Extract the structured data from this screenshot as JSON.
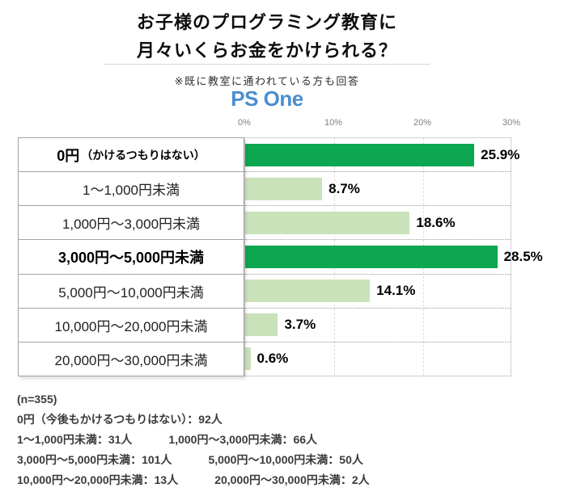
{
  "header": {
    "title_line1": "お子様のプログラミング教育に",
    "title_line2": "月々いくらお金をかけられる？",
    "note": "※既に教室に通われている方も回答",
    "logo_text": "PS One"
  },
  "chart_data": {
    "type": "bar",
    "orientation": "horizontal",
    "title": "お子様のプログラミング教育に月々いくらお金をかけられる？",
    "x_ticks": [
      "0%",
      "10%",
      "20%",
      "30%"
    ],
    "xlim": [
      0,
      30
    ],
    "grid": true,
    "legend": false,
    "categories": [
      {
        "label": "0円",
        "suffix": "（かけるつもりはない）"
      },
      {
        "label": "1～1,000円未満",
        "suffix": ""
      },
      {
        "label": "1,000円～3,000円未満",
        "suffix": ""
      },
      {
        "label": "3,000円～5,000円未満",
        "suffix": ""
      },
      {
        "label": "5,000円～10,000円未満",
        "suffix": ""
      },
      {
        "label": "10,000円～20,000円未満",
        "suffix": ""
      },
      {
        "label": "20,000円～30,000円未満",
        "suffix": ""
      }
    ],
    "values": [
      25.9,
      8.7,
      18.6,
      28.5,
      14.1,
      3.7,
      0.6
    ],
    "value_labels": [
      "25.9%",
      "8.7%",
      "18.6%",
      "28.5%",
      "14.1%",
      "3.7%",
      "0.6%"
    ],
    "counts": [
      92,
      31,
      66,
      101,
      50,
      13,
      2
    ],
    "n": 355,
    "emphasized": [
      true,
      false,
      false,
      true,
      false,
      false,
      false
    ],
    "colors": {
      "bar_strong": "#0ca750",
      "bar_light": "#c9e2ba",
      "logo_blue": "#4a8fce"
    }
  },
  "footnote": {
    "sample": "(n=355)",
    "lines": [
      [
        "0円（今後もかけるつもりはない）：92人",
        ""
      ],
      [
        "1～1,000円未満：31人",
        "1,000円～3,000円未満：66人"
      ],
      [
        "3,000円～5,000円未満：101人",
        "5,000円～10,000円未満：50人"
      ],
      [
        "10,000円～20,000円未満：13人",
        "20,000円～30,000円未満：2人"
      ]
    ]
  }
}
